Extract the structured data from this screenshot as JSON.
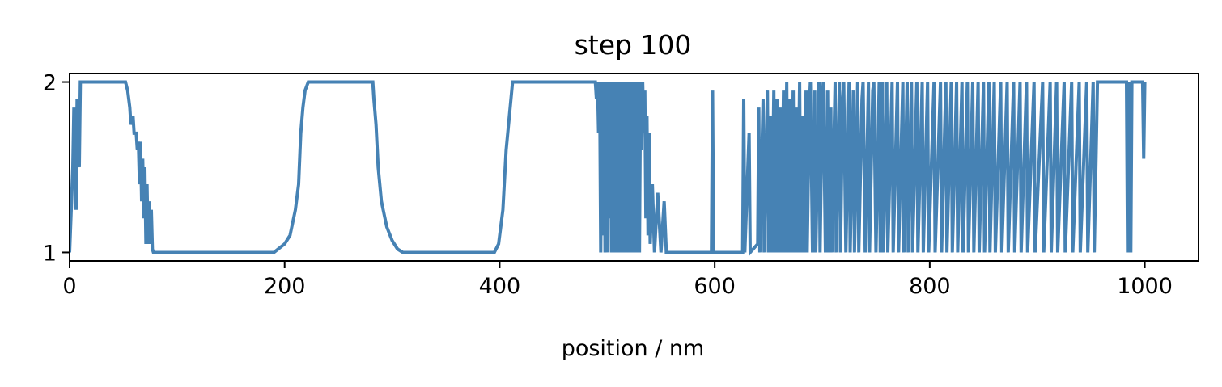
{
  "chart_data": {
    "type": "line",
    "title": "step 100",
    "xlabel": "position / nm",
    "ylabel": "",
    "xlim": [
      0,
      1050
    ],
    "ylim": [
      0.95,
      2.05
    ],
    "xticks": [
      0,
      200,
      400,
      600,
      800,
      1000
    ],
    "yticks": [
      1,
      2
    ],
    "xtick_labels": [
      "0",
      "200",
      "400",
      "600",
      "800",
      "1000"
    ],
    "ytick_labels": [
      "1",
      "2"
    ],
    "grid": false,
    "legend": "none",
    "line_color": "#4682b4",
    "series": [
      {
        "points": [
          [
            0,
            1.0
          ],
          [
            3,
            1.5
          ],
          [
            4,
            1.85
          ],
          [
            6,
            1.25
          ],
          [
            7,
            1.9
          ],
          [
            9,
            1.5
          ],
          [
            10,
            2.0
          ],
          [
            52,
            2.0
          ],
          [
            54,
            1.95
          ],
          [
            56,
            1.85
          ],
          [
            57,
            1.75
          ],
          [
            59,
            1.8
          ],
          [
            60,
            1.7
          ],
          [
            62,
            1.7
          ],
          [
            63,
            1.6
          ],
          [
            64,
            1.65
          ],
          [
            65,
            1.4
          ],
          [
            66,
            1.65
          ],
          [
            67,
            1.3
          ],
          [
            68,
            1.55
          ],
          [
            69,
            1.2
          ],
          [
            70,
            1.5
          ],
          [
            71,
            1.05
          ],
          [
            72,
            1.4
          ],
          [
            73,
            1.05
          ],
          [
            74,
            1.3
          ],
          [
            75,
            1.05
          ],
          [
            76,
            1.25
          ],
          [
            77,
            1.02
          ],
          [
            78,
            1.0
          ],
          [
            190,
            1.0
          ],
          [
            200,
            1.05
          ],
          [
            205,
            1.1
          ],
          [
            210,
            1.25
          ],
          [
            213,
            1.4
          ],
          [
            215,
            1.7
          ],
          [
            217,
            1.85
          ],
          [
            219,
            1.95
          ],
          [
            222,
            2.0
          ],
          [
            282,
            2.0
          ],
          [
            283,
            1.9
          ],
          [
            285,
            1.75
          ],
          [
            287,
            1.5
          ],
          [
            290,
            1.3
          ],
          [
            295,
            1.15
          ],
          [
            300,
            1.07
          ],
          [
            305,
            1.02
          ],
          [
            310,
            1.0
          ],
          [
            395,
            1.0
          ],
          [
            399,
            1.05
          ],
          [
            403,
            1.25
          ],
          [
            406,
            1.6
          ],
          [
            409,
            1.8
          ],
          [
            412,
            2.0
          ],
          [
            489,
            2.0
          ],
          [
            490,
            1.9
          ],
          [
            491,
            2.0
          ],
          [
            492,
            1.7
          ],
          [
            493,
            2.0
          ],
          [
            494,
            1.0
          ],
          [
            495,
            2.0
          ],
          [
            496,
            1.1
          ],
          [
            497,
            2.0
          ],
          [
            498,
            1.0
          ],
          [
            499,
            2.0
          ],
          [
            500,
            1.0
          ],
          [
            501,
            2.0
          ],
          [
            502,
            1.2
          ],
          [
            503,
            2.0
          ],
          [
            504,
            1.0
          ],
          [
            505,
            2.0
          ],
          [
            506,
            1.0
          ],
          [
            507,
            2.0
          ],
          [
            508,
            1.0
          ],
          [
            509,
            2.0
          ],
          [
            510,
            1.0
          ],
          [
            511,
            2.0
          ],
          [
            512,
            1.0
          ],
          [
            513,
            2.0
          ],
          [
            514,
            1.0
          ],
          [
            515,
            2.0
          ],
          [
            516,
            1.0
          ],
          [
            517,
            2.0
          ],
          [
            518,
            1.0
          ],
          [
            519,
            2.0
          ],
          [
            520,
            1.0
          ],
          [
            521,
            2.0
          ],
          [
            522,
            1.0
          ],
          [
            523,
            2.0
          ],
          [
            524,
            1.0
          ],
          [
            525,
            2.0
          ],
          [
            526,
            1.0
          ],
          [
            527,
            2.0
          ],
          [
            528,
            1.0
          ],
          [
            529,
            2.0
          ],
          [
            530,
            1.0
          ],
          [
            531,
            2.0
          ],
          [
            532,
            1.6
          ],
          [
            533,
            2.0
          ],
          [
            534,
            1.7
          ],
          [
            535,
            1.95
          ],
          [
            536,
            1.2
          ],
          [
            537,
            1.8
          ],
          [
            538,
            1.1
          ],
          [
            539,
            1.7
          ],
          [
            540,
            1.05
          ],
          [
            542,
            1.4
          ],
          [
            544,
            1.0
          ],
          [
            547,
            1.35
          ],
          [
            550,
            1.0
          ],
          [
            553,
            1.3
          ],
          [
            555,
            1.0
          ],
          [
            597,
            1.0
          ],
          [
            598,
            1.95
          ],
          [
            599,
            1.0
          ],
          [
            626,
            1.0
          ],
          [
            627,
            1.9
          ],
          [
            628,
            1.0
          ],
          [
            632,
            1.7
          ],
          [
            633,
            1.0
          ],
          [
            640,
            1.05
          ],
          [
            641,
            1.85
          ],
          [
            642,
            1.0
          ],
          [
            645,
            1.9
          ],
          [
            646,
            1.0
          ],
          [
            649,
            1.95
          ],
          [
            650,
            1.0
          ],
          [
            652,
            1.8
          ],
          [
            653,
            1.0
          ],
          [
            655,
            1.95
          ],
          [
            656,
            1.0
          ],
          [
            658,
            1.9
          ],
          [
            659,
            1.0
          ],
          [
            661,
            1.85
          ],
          [
            662,
            1.0
          ],
          [
            664,
            1.95
          ],
          [
            665,
            1.0
          ],
          [
            667,
            2.0
          ],
          [
            668,
            1.0
          ],
          [
            670,
            1.9
          ],
          [
            671,
            1.0
          ],
          [
            673,
            1.95
          ],
          [
            674,
            1.0
          ],
          [
            676,
            1.85
          ],
          [
            677,
            1.0
          ],
          [
            679,
            2.0
          ],
          [
            680,
            1.0
          ],
          [
            682,
            1.8
          ],
          [
            683,
            1.0
          ],
          [
            685,
            1.95
          ],
          [
            686,
            1.0
          ],
          [
            688,
            1.85
          ],
          [
            689,
            2.0
          ],
          [
            691,
            1.0
          ],
          [
            693,
            1.95
          ],
          [
            694,
            1.0
          ],
          [
            697,
            2.0
          ],
          [
            698,
            1.0
          ],
          [
            700,
            1.9
          ],
          [
            701,
            2.0
          ],
          [
            703,
            1.0
          ],
          [
            705,
            1.95
          ],
          [
            706,
            1.0
          ],
          [
            708,
            1.85
          ],
          [
            709,
            1.0
          ],
          [
            712,
            2.0
          ],
          [
            713,
            1.0
          ],
          [
            716,
            2.0
          ],
          [
            717,
            1.0
          ],
          [
            719,
            1.9
          ],
          [
            720,
            2.0
          ],
          [
            722,
            1.0
          ],
          [
            725,
            2.0
          ],
          [
            726,
            1.0
          ],
          [
            729,
            1.95
          ],
          [
            730,
            1.0
          ],
          [
            733,
            2.0
          ],
          [
            734,
            1.0
          ],
          [
            737,
            1.9
          ],
          [
            738,
            2.0
          ],
          [
            740,
            1.0
          ],
          [
            743,
            2.0
          ],
          [
            744,
            1.0
          ],
          [
            747,
            1.95
          ],
          [
            748,
            2.0
          ],
          [
            750,
            1.0
          ],
          [
            753,
            2.0
          ],
          [
            754,
            1.0
          ],
          [
            756,
            2.0
          ],
          [
            757,
            1.0
          ],
          [
            760,
            2.0
          ],
          [
            761,
            1.0
          ],
          [
            765,
            2.0
          ],
          [
            766,
            1.0
          ],
          [
            770,
            2.0
          ],
          [
            771,
            1.0
          ],
          [
            775,
            2.0
          ],
          [
            776,
            1.0
          ],
          [
            779,
            2.0
          ],
          [
            780,
            1.0
          ],
          [
            783,
            2.0
          ],
          [
            784,
            1.0
          ],
          [
            788,
            2.0
          ],
          [
            789,
            1.0
          ],
          [
            793,
            2.0
          ],
          [
            794,
            1.0
          ],
          [
            798,
            2.0
          ],
          [
            799,
            1.0
          ],
          [
            804,
            2.0
          ],
          [
            805,
            1.0
          ],
          [
            810,
            2.0
          ],
          [
            811,
            1.0
          ],
          [
            815,
            2.0
          ],
          [
            816,
            1.0
          ],
          [
            820,
            2.0
          ],
          [
            821,
            1.0
          ],
          [
            825,
            2.0
          ],
          [
            826,
            1.0
          ],
          [
            830,
            2.0
          ],
          [
            831,
            1.0
          ],
          [
            835,
            2.0
          ],
          [
            836,
            1.0
          ],
          [
            840,
            2.0
          ],
          [
            841,
            1.0
          ],
          [
            845,
            2.0
          ],
          [
            846,
            1.0
          ],
          [
            850,
            2.0
          ],
          [
            851,
            1.0
          ],
          [
            855,
            2.0
          ],
          [
            856,
            1.0
          ],
          [
            860,
            2.0
          ],
          [
            861,
            1.0
          ],
          [
            866,
            2.0
          ],
          [
            867,
            1.0
          ],
          [
            872,
            2.0
          ],
          [
            873,
            1.0
          ],
          [
            878,
            2.0
          ],
          [
            879,
            1.0
          ],
          [
            884,
            2.0
          ],
          [
            885,
            1.0
          ],
          [
            890,
            2.0
          ],
          [
            891,
            1.0
          ],
          [
            897,
            2.0
          ],
          [
            898,
            1.0
          ],
          [
            905,
            2.0
          ],
          [
            906,
            1.0
          ],
          [
            912,
            2.0
          ],
          [
            913,
            1.0
          ],
          [
            918,
            2.0
          ],
          [
            919,
            1.0
          ],
          [
            925,
            2.0
          ],
          [
            926,
            1.0
          ],
          [
            932,
            2.0
          ],
          [
            933,
            1.0
          ],
          [
            939,
            2.0
          ],
          [
            940,
            1.0
          ],
          [
            946,
            2.0
          ],
          [
            947,
            1.0
          ],
          [
            952,
            2.0
          ],
          [
            953,
            1.0
          ],
          [
            956,
            2.0
          ],
          [
            983,
            2.0
          ],
          [
            984,
            1.0
          ],
          [
            985,
            2.0
          ],
          [
            987,
            1.0
          ],
          [
            988,
            2.0
          ],
          [
            998,
            2.0
          ],
          [
            999,
            1.55
          ],
          [
            1000,
            2.0
          ]
        ]
      }
    ]
  }
}
